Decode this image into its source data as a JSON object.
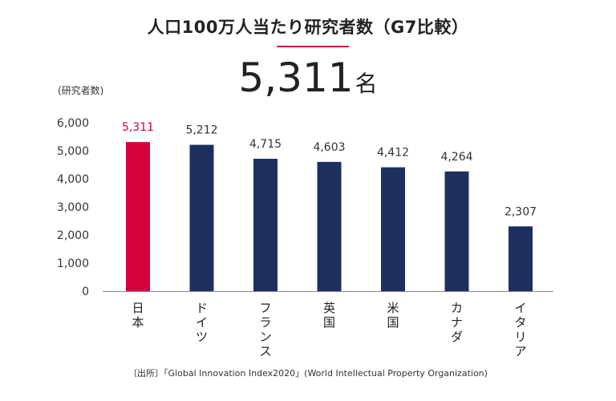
{
  "header": {
    "title": "人口100万人当たり研究者数（G7比較）",
    "headline_value": "5,311",
    "headline_unit": "名"
  },
  "source": "〔出所〕「Global Innovation Index2020」(World Intellectual Property Organization)",
  "colors": {
    "highlight": "#d6003c",
    "bar": "#1c2f5e",
    "axis": "#888888",
    "text": "#222222"
  },
  "chart_data": {
    "type": "bar",
    "ylabel": "(研究者数)",
    "ylim": [
      0,
      6000
    ],
    "yticks": [
      0,
      1000,
      2000,
      3000,
      4000,
      5000,
      6000
    ],
    "ytick_labels": [
      "0",
      "1,000",
      "2,000",
      "3,000",
      "4,000",
      "5,000",
      "6,000"
    ],
    "categories": [
      "日本",
      "ドイツ",
      "フランス",
      "英国",
      "米国",
      "カナダ",
      "イタリア"
    ],
    "values": [
      5311,
      5212,
      4715,
      4603,
      4412,
      4264,
      2307
    ],
    "value_labels": [
      "5,311",
      "5,212",
      "4,715",
      "4,603",
      "4,412",
      "4,264",
      "2,307"
    ],
    "highlight_index": 0,
    "grid": false,
    "legend": "none"
  }
}
